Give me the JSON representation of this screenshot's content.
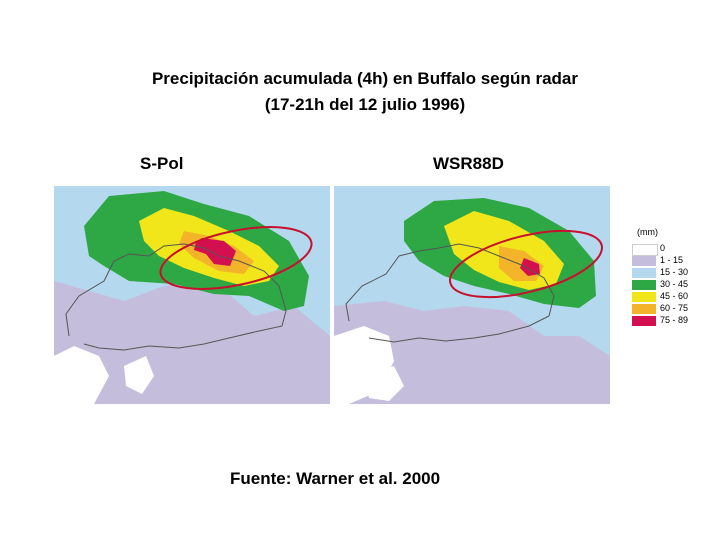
{
  "title_line1": "Precipitación acumulada (4h) en Buffalo según radar",
  "title_line2": "(17-21h del 12 julio 1996)",
  "panels": [
    {
      "label": "S-Pol"
    },
    {
      "label": "WSR88D"
    }
  ],
  "legend": {
    "unit": "(mm)",
    "classes": [
      {
        "label": "0",
        "color": "#ffffff"
      },
      {
        "label": "1 - 15",
        "color": "#c4bedc"
      },
      {
        "label": "15 - 30",
        "color": "#b4d8ee"
      },
      {
        "label": "30 - 45",
        "color": "#2ea844"
      },
      {
        "label": "45 - 60",
        "color": "#f0e61a"
      },
      {
        "label": "60 - 75",
        "color": "#f3b42a"
      },
      {
        "label": "75 - 89",
        "color": "#d40f50"
      }
    ]
  },
  "source": "Fuente: Warner et al. 2000"
}
